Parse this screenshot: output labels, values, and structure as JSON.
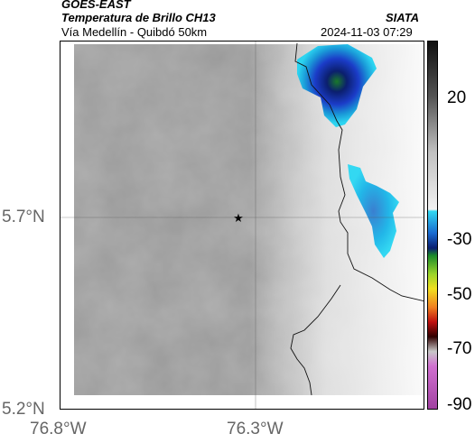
{
  "header": {
    "satellite": "GOES-EAST",
    "product": "Temperatura de Brillo CH13",
    "route": "Vía Medellín - Quibdó 50km",
    "source": "SIATA",
    "timestamp": "2024-11-03 07:29"
  },
  "axes": {
    "y_labels": [
      "5.7°N",
      "5.2°N"
    ],
    "x_labels": [
      "76.8°W",
      "76.3°W"
    ]
  },
  "colorbar": {
    "tick_labels": [
      "20",
      "-30",
      "-50",
      "-70",
      "-90"
    ]
  },
  "marker": {
    "type": "star"
  }
}
